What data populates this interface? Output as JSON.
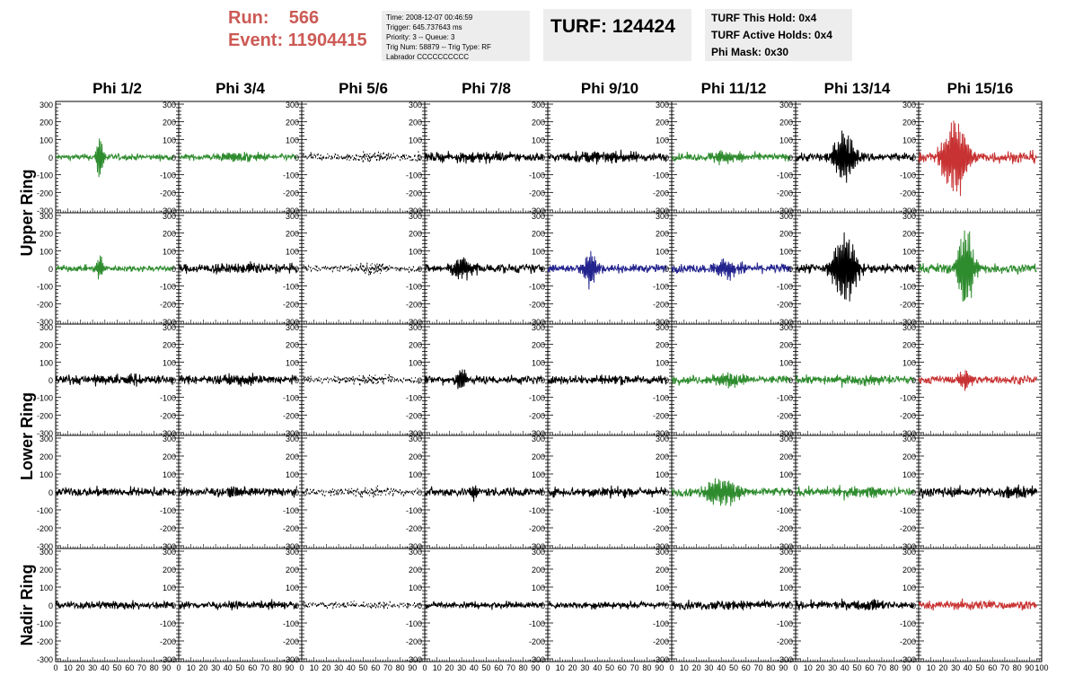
{
  "header": {
    "run_label": "Run:",
    "run_value": "566",
    "event_label": "Event:",
    "event_value": "11904415",
    "info_lines": [
      "Time: 2008-12-07 00:46:59",
      "Trigger: 645.737643 ms",
      "Priority: 3 -- Queue: 3",
      "Trig Num: 58879 -- Trig Type: RF",
      "Labrador CCCCCCCCCC"
    ],
    "turf": "TURF: 124424",
    "turf_lines": [
      "TURF This Hold: 0x4",
      "TURF Active Holds: 0x4",
      "Phi Mask: 0x30"
    ]
  },
  "colors": {
    "green": "#2e8b2e",
    "black": "#000000",
    "blue": "#23238e",
    "red": "#c83232",
    "run_text": "#cc5a55"
  },
  "chart_data": {
    "type": "line",
    "columns": [
      "Phi 1/2",
      "Phi 3/4",
      "Phi 5/6",
      "Phi 7/8",
      "Phi 9/10",
      "Phi 11/12",
      "Phi 13/14",
      "Phi 15/16"
    ],
    "ring_labels": [
      {
        "label": "Upper Ring",
        "rows": [
          0,
          1
        ]
      },
      {
        "label": "Lower Ring",
        "rows": [
          2,
          3
        ]
      },
      {
        "label": "Nadir Ring",
        "rows": [
          4
        ]
      }
    ],
    "xlim": [
      0,
      100
    ],
    "ylim": [
      -300,
      300
    ],
    "x_ticks": [
      0,
      10,
      20,
      30,
      40,
      50,
      60,
      70,
      80,
      90,
      100
    ],
    "y_ticks": [
      -300,
      -200,
      -100,
      0,
      100,
      200,
      300
    ],
    "waveform_x_range": [
      0,
      96
    ],
    "panels": [
      [
        {
          "color": "green",
          "style": "solid",
          "noise": 15,
          "burst_at": 36,
          "burst_amp": 150,
          "burst_width": 3
        },
        {
          "color": "green",
          "style": "solid",
          "noise": 15,
          "burst_at": 50,
          "burst_amp": 25,
          "burst_width": 20
        },
        {
          "color": "black",
          "style": "dashed",
          "noise": 20,
          "burst_at": 55,
          "burst_amp": 20,
          "burst_width": 25
        },
        {
          "color": "black",
          "style": "solid",
          "noise": 22,
          "burst_at": 50,
          "burst_amp": 20,
          "burst_width": 30
        },
        {
          "color": "black",
          "style": "solid",
          "noise": 22,
          "burst_at": 45,
          "burst_amp": 20,
          "burst_width": 30
        },
        {
          "color": "green",
          "style": "solid",
          "noise": 18,
          "burst_at": 45,
          "burst_amp": 40,
          "burst_width": 15
        },
        {
          "color": "black",
          "style": "solid",
          "noise": 22,
          "burst_at": 40,
          "burst_amp": 170,
          "burst_width": 9
        },
        {
          "color": "red",
          "style": "solid",
          "noise": 30,
          "burst_at": 30,
          "burst_amp": 280,
          "burst_width": 10
        }
      ],
      [
        {
          "color": "green",
          "style": "solid",
          "noise": 15,
          "burst_at": 36,
          "burst_amp": 90,
          "burst_width": 3
        },
        {
          "color": "black",
          "style": "solid",
          "noise": 22,
          "burst_at": 50,
          "burst_amp": 20,
          "burst_width": 30
        },
        {
          "color": "black",
          "style": "dashed",
          "noise": 18,
          "burst_at": 55,
          "burst_amp": 30,
          "burst_width": 15
        },
        {
          "color": "black",
          "style": "solid",
          "noise": 22,
          "burst_at": 30,
          "burst_amp": 70,
          "burst_width": 10
        },
        {
          "color": "blue",
          "style": "solid",
          "noise": 20,
          "burst_at": 34,
          "burst_amp": 110,
          "burst_width": 6
        },
        {
          "color": "blue",
          "style": "solid",
          "noise": 22,
          "burst_at": 45,
          "burst_amp": 60,
          "burst_width": 12
        },
        {
          "color": "black",
          "style": "solid",
          "noise": 25,
          "burst_at": 40,
          "burst_amp": 230,
          "burst_width": 10
        },
        {
          "color": "green",
          "style": "solid",
          "noise": 25,
          "burst_at": 38,
          "burst_amp": 280,
          "burst_width": 7
        }
      ],
      [
        {
          "color": "black",
          "style": "solid",
          "noise": 22,
          "burst_at": 50,
          "burst_amp": 25,
          "burst_width": 30
        },
        {
          "color": "black",
          "style": "solid",
          "noise": 20,
          "burst_at": 50,
          "burst_amp": 20,
          "burst_width": 30
        },
        {
          "color": "black",
          "style": "dashed",
          "noise": 18,
          "burst_at": 55,
          "burst_amp": 25,
          "burst_width": 20
        },
        {
          "color": "black",
          "style": "solid",
          "noise": 22,
          "burst_at": 30,
          "burst_amp": 80,
          "burst_width": 5
        },
        {
          "color": "black",
          "style": "solid",
          "noise": 20,
          "burst_at": 50,
          "burst_amp": 15,
          "burst_width": 30
        },
        {
          "color": "green",
          "style": "solid",
          "noise": 20,
          "burst_at": 45,
          "burst_amp": 40,
          "burst_width": 15
        },
        {
          "color": "green",
          "style": "solid",
          "noise": 20,
          "burst_at": 50,
          "burst_amp": 20,
          "burst_width": 30
        },
        {
          "color": "red",
          "style": "solid",
          "noise": 20,
          "burst_at": 38,
          "burst_amp": 70,
          "burst_width": 6
        }
      ],
      [
        {
          "color": "black",
          "style": "solid",
          "noise": 20,
          "burst_at": 50,
          "burst_amp": 15,
          "burst_width": 30
        },
        {
          "color": "black",
          "style": "solid",
          "noise": 20,
          "burst_at": 50,
          "burst_amp": 15,
          "burst_width": 30
        },
        {
          "color": "black",
          "style": "dashed",
          "noise": 18,
          "burst_at": 55,
          "burst_amp": 20,
          "burst_width": 20
        },
        {
          "color": "black",
          "style": "solid",
          "noise": 22,
          "burst_at": 40,
          "burst_amp": 45,
          "burst_width": 5
        },
        {
          "color": "black",
          "style": "solid",
          "noise": 22,
          "burst_at": 50,
          "burst_amp": 15,
          "burst_width": 30
        },
        {
          "color": "green",
          "style": "solid",
          "noise": 22,
          "burst_at": 40,
          "burst_amp": 85,
          "burst_width": 15
        },
        {
          "color": "green",
          "style": "solid",
          "noise": 20,
          "burst_at": 50,
          "burst_amp": 25,
          "burst_width": 25
        },
        {
          "color": "black",
          "style": "solid",
          "noise": 25,
          "burst_at": 80,
          "burst_amp": 30,
          "burst_width": 15
        }
      ],
      [
        {
          "color": "black",
          "style": "solid",
          "noise": 18,
          "burst_at": 50,
          "burst_amp": 10,
          "burst_width": 30
        },
        {
          "color": "black",
          "style": "solid",
          "noise": 18,
          "burst_at": 75,
          "burst_amp": 15,
          "burst_width": 10
        },
        {
          "color": "black",
          "style": "dashed",
          "noise": 16,
          "burst_at": 55,
          "burst_amp": 10,
          "burst_width": 20
        },
        {
          "color": "black",
          "style": "solid",
          "noise": 15,
          "burst_at": 50,
          "burst_amp": 10,
          "burst_width": 30
        },
        {
          "color": "black",
          "style": "solid",
          "noise": 15,
          "burst_at": 50,
          "burst_amp": 10,
          "burst_width": 30
        },
        {
          "color": "black",
          "style": "solid",
          "noise": 20,
          "burst_at": 50,
          "burst_amp": 15,
          "burst_width": 30
        },
        {
          "color": "black",
          "style": "solid",
          "noise": 20,
          "burst_at": 60,
          "burst_amp": 20,
          "burst_width": 20
        },
        {
          "color": "red",
          "style": "solid",
          "noise": 20,
          "burst_at": 50,
          "burst_amp": 15,
          "burst_width": 30
        }
      ]
    ]
  }
}
